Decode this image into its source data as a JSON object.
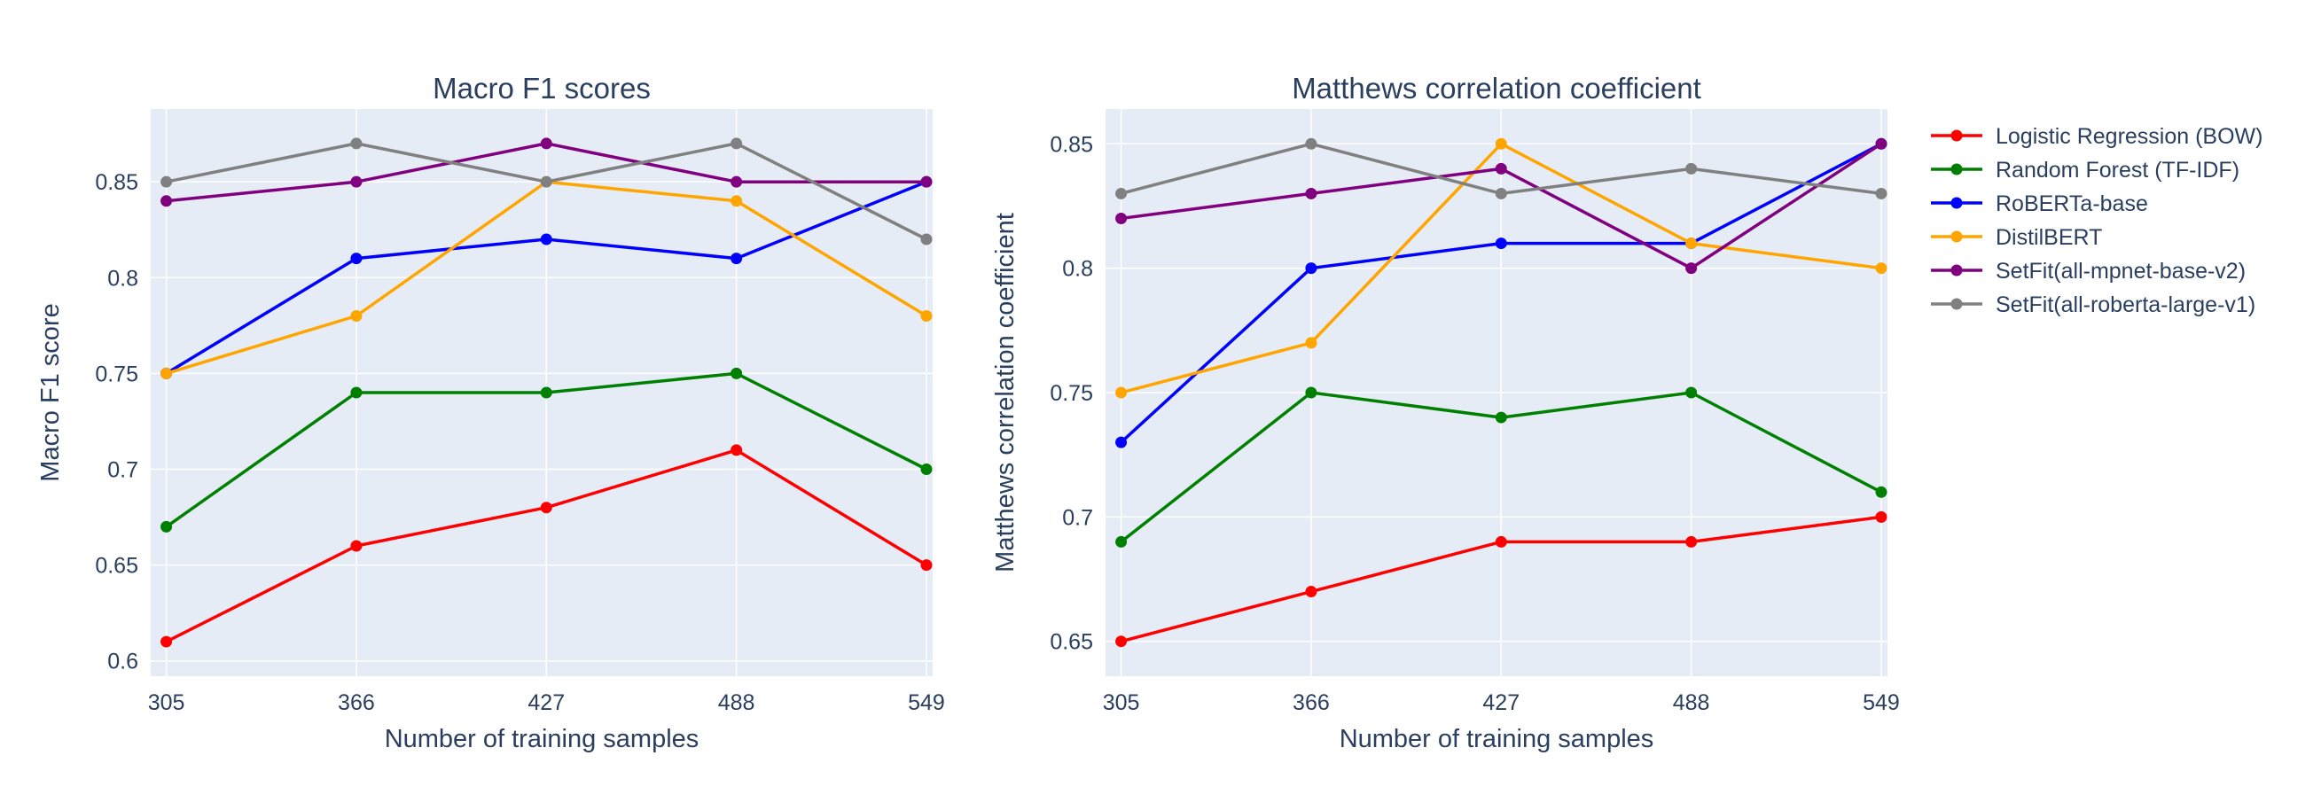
{
  "chart_data": [
    {
      "type": "line",
      "title": "Macro F1 scores",
      "xlabel": "Number of training samples",
      "ylabel": "Macro F1 score",
      "x": [
        305,
        366,
        427,
        488,
        549
      ],
      "x_ticks": [
        "305",
        "366",
        "427",
        "488",
        "549"
      ],
      "y_ticks": [
        0.6,
        0.65,
        0.7,
        0.75,
        0.8,
        0.85
      ],
      "y_tick_labels": [
        "0.6",
        "0.65",
        "0.7",
        "0.75",
        "0.8",
        "0.85"
      ],
      "xlim": [
        300,
        551
      ],
      "ylim": [
        0.592,
        0.888
      ],
      "grid": true,
      "series": [
        {
          "name": "Logistic Regression (BOW)",
          "color": "#ff0000",
          "values": [
            0.61,
            0.66,
            0.68,
            0.71,
            0.65
          ]
        },
        {
          "name": "Random Forest (TF-IDF)",
          "color": "#008000",
          "values": [
            0.67,
            0.74,
            0.74,
            0.75,
            0.7
          ]
        },
        {
          "name": "RoBERTa-base",
          "color": "#0000ff",
          "values": [
            0.75,
            0.81,
            0.82,
            0.81,
            0.85
          ]
        },
        {
          "name": "DistilBERT",
          "color": "#ffa500",
          "values": [
            0.75,
            0.78,
            0.85,
            0.84,
            0.78
          ]
        },
        {
          "name": "SetFit(all-mpnet-base-v2)",
          "color": "#800080",
          "values": [
            0.84,
            0.85,
            0.87,
            0.85,
            0.85
          ]
        },
        {
          "name": "SetFit(all-roberta-large-v1)",
          "color": "#808080",
          "values": [
            0.85,
            0.87,
            0.85,
            0.87,
            0.82
          ]
        }
      ]
    },
    {
      "type": "line",
      "title": "Matthews correlation coefficient",
      "xlabel": "Number of training samples",
      "ylabel": "Matthews correlation coefficient",
      "x": [
        305,
        366,
        427,
        488,
        549
      ],
      "x_ticks": [
        "305",
        "366",
        "427",
        "488",
        "549"
      ],
      "y_ticks": [
        0.65,
        0.7,
        0.75,
        0.8,
        0.85
      ],
      "y_tick_labels": [
        "0.65",
        "0.7",
        "0.75",
        "0.8",
        "0.85"
      ],
      "xlim": [
        300,
        551
      ],
      "ylim": [
        0.636,
        0.864
      ],
      "grid": true,
      "series": [
        {
          "name": "Logistic Regression (BOW)",
          "color": "#ff0000",
          "values": [
            0.65,
            0.67,
            0.69,
            0.69,
            0.7
          ]
        },
        {
          "name": "Random Forest (TF-IDF)",
          "color": "#008000",
          "values": [
            0.69,
            0.75,
            0.74,
            0.75,
            0.71
          ]
        },
        {
          "name": "RoBERTa-base",
          "color": "#0000ff",
          "values": [
            0.73,
            0.8,
            0.81,
            0.81,
            0.85
          ]
        },
        {
          "name": "DistilBERT",
          "color": "#ffa500",
          "values": [
            0.75,
            0.77,
            0.85,
            0.81,
            0.8
          ]
        },
        {
          "name": "SetFit(all-mpnet-base-v2)",
          "color": "#800080",
          "values": [
            0.82,
            0.83,
            0.84,
            0.8,
            0.85
          ]
        },
        {
          "name": "SetFit(all-roberta-large-v1)",
          "color": "#808080",
          "values": [
            0.83,
            0.85,
            0.83,
            0.84,
            0.83
          ]
        }
      ]
    }
  ],
  "legend": {
    "position": "top-right",
    "entries": [
      {
        "label": "Logistic Regression (BOW)",
        "color": "#ff0000"
      },
      {
        "label": "Random Forest (TF-IDF)",
        "color": "#008000"
      },
      {
        "label": "RoBERTa-base",
        "color": "#0000ff"
      },
      {
        "label": "DistilBERT",
        "color": "#ffa500"
      },
      {
        "label": "SetFit(all-mpnet-base-v2)",
        "color": "#800080"
      },
      {
        "label": "SetFit(all-roberta-large-v1)",
        "color": "#808080"
      }
    ]
  },
  "style": {
    "plot_background": "#e5ecf6",
    "grid_color": "#ffffff",
    "text_color": "#2a3f5f"
  }
}
